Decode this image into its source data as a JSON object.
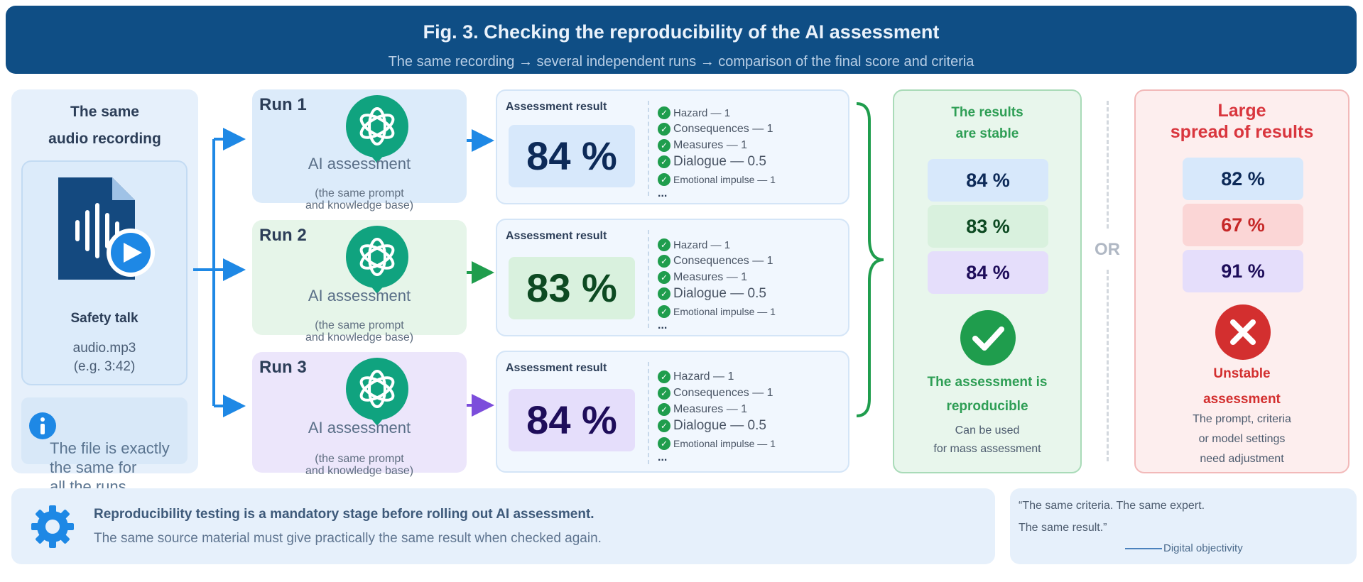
{
  "header": {
    "title": "Fig. 3. Checking the reproducibility of the AI assessment",
    "subtitle": "The same recording → several independent runs → comparison of the final score and criteria"
  },
  "source": {
    "title_line1": "The same",
    "title_line2": "audio recording",
    "file_label": "Safety talk",
    "file_name": "audio.mp3",
    "file_duration": "(e.g. 3:42)",
    "note_line1": "The file is exactly",
    "note_line2": "the same for",
    "note_line3": "all the runs"
  },
  "runs": [
    {
      "label": "Run 1",
      "ai_label": "AI assessment",
      "note_line1": "(the same prompt",
      "note_line2": "and knowledge base)",
      "result_title": "Assessment result",
      "score": "84 %",
      "criteria": [
        "Hazard — 1",
        "Consequences — 1",
        "Measures — 1",
        "Dialogue — 0.5",
        "Emotional impulse — 1"
      ],
      "more": "..."
    },
    {
      "label": "Run 2",
      "ai_label": "AI assessment",
      "note_line1": "(the same prompt",
      "note_line2": "and knowledge base)",
      "result_title": "Assessment result",
      "score": "83 %",
      "criteria": [
        "Hazard — 1",
        "Consequences — 1",
        "Measures — 1",
        "Dialogue — 0.5",
        "Emotional impulse — 1"
      ],
      "more": "..."
    },
    {
      "label": "Run 3",
      "ai_label": "AI assessment",
      "note_line1": "(the same prompt",
      "note_line2": "and knowledge base)",
      "result_title": "Assessment result",
      "score": "84 %",
      "criteria": [
        "Hazard — 1",
        "Consequences — 1",
        "Measures — 1",
        "Dialogue — 0.5",
        "Emotional impulse — 1"
      ],
      "more": "..."
    }
  ],
  "stable": {
    "heading_line1": "The results",
    "heading_line2": "are stable",
    "scores": [
      "84 %",
      "83 %",
      "84 %"
    ],
    "conclusion_line1": "The assessment is",
    "conclusion_line2": "reproducible",
    "text_line1": "Can be used",
    "text_line2": "for mass assessment"
  },
  "or_label": "OR",
  "unstable": {
    "heading_line1": "Large",
    "heading_line2": "spread of results",
    "scores": [
      "82 %",
      "67 %",
      "91 %"
    ],
    "conclusion_line1": "Unstable",
    "conclusion_line2": "assessment",
    "text_line1": "The prompt, criteria",
    "text_line2": "or model settings",
    "text_line3": "need adjustment"
  },
  "footer": {
    "bold": "Reproducibility testing is a mandatory stage before rolling out AI assessment.",
    "text": "The same source material must give practically the same result when checked again."
  },
  "quote": {
    "line1": "“The same criteria. The same expert.",
    "line2": "The same result.”",
    "signature": "Digital objectivity"
  },
  "colors": {
    "header_bg": "#0f4e85",
    "arrow_blue": "#1e88e5",
    "arrow_green": "#1f9d4d",
    "arrow_purple": "#7c4ddb",
    "openai_green": "#10a37f",
    "stable_green": "#2e9e55",
    "unstable_red": "#d32f2f"
  },
  "icons": [
    "audio-file-icon",
    "play-icon",
    "info-icon",
    "ai-logo-icon",
    "check-icon",
    "checkmark-circle-icon",
    "cross-circle-icon",
    "gear-icon"
  ]
}
